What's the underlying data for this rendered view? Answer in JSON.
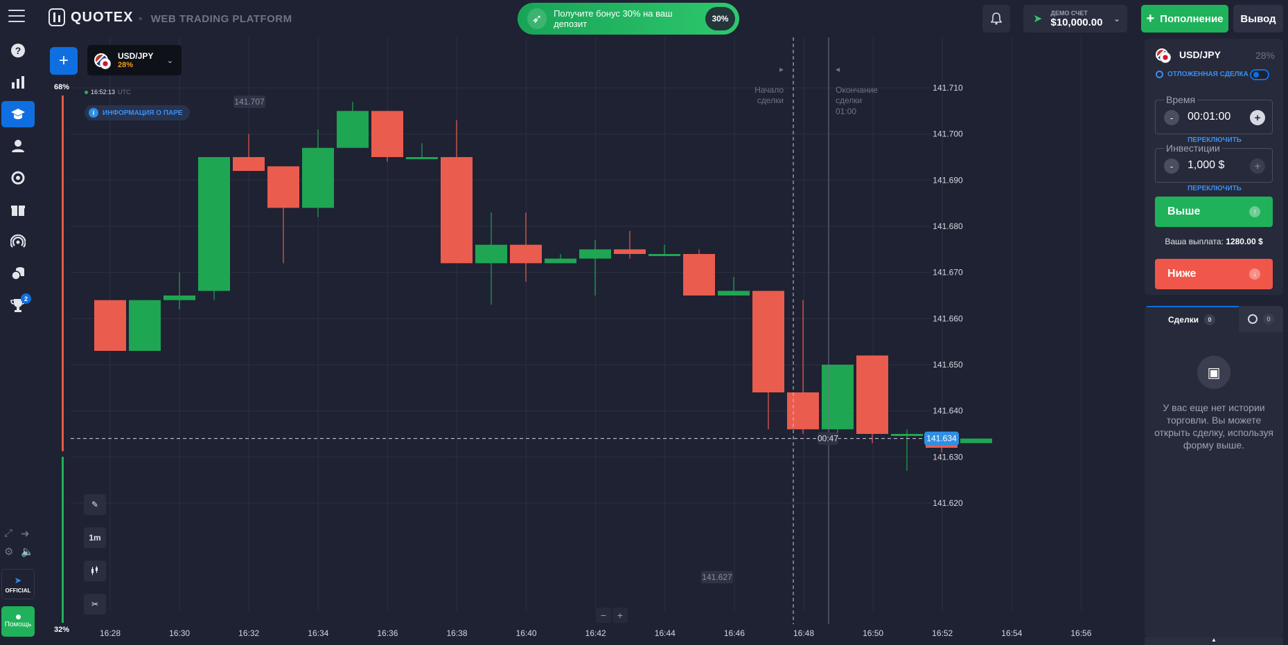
{
  "header": {
    "logo_text": "QUOTEX",
    "platform_label": "WEB TRADING PLATFORM",
    "bonus_text": "Получите бонус 30% на ваш депозит",
    "bonus_badge": "30%",
    "account_label": "ДЕМО СЧЕТ",
    "account_balance": "$10,000.00",
    "deposit_label": "Пополнение",
    "withdraw_label": "Вывод"
  },
  "sidebar": {
    "icons": [
      "help-icon",
      "chart-bars-icon",
      "education-icon",
      "user-icon",
      "refresh-icon",
      "gift-icon",
      "signal-icon",
      "coins-icon",
      "trophy-icon"
    ],
    "trophy_badge": "2",
    "official_label": "OFFICIAL",
    "help_label": "Помощь"
  },
  "chart_panel": {
    "pair_name": "USD/JPY",
    "pair_payout": "28%",
    "sentiment_up": "68%",
    "sentiment_down": "32%",
    "server_time": "16:52:13",
    "timezone": "UTC",
    "pair_info_label": "ИНФОРМАЦИЯ О ПАРЕ",
    "timeframe_label": "1m",
    "zoom_minus": "−",
    "zoom_plus": "+"
  },
  "chart_data": {
    "type": "candlestick",
    "y_ticks": [
      "141.710",
      "141.700",
      "141.690",
      "141.680",
      "141.670",
      "141.660",
      "141.650",
      "141.640",
      "141.630",
      "141.620"
    ],
    "ylim": [
      141.6155,
      141.7175
    ],
    "x_ticks": [
      "16:28",
      "16:30",
      "16:32",
      "16:34",
      "16:36",
      "16:38",
      "16:40",
      "16:42",
      "16:44",
      "16:46",
      "16:48",
      "16:50",
      "16:52",
      "16:54",
      "16:56"
    ],
    "high_marker": "141.707",
    "low_marker": "141.627",
    "current_price": "141.634",
    "countdown": "00:47",
    "trade_start_label_1": "Начало",
    "trade_start_label_2": "сделки",
    "trade_end_label_1": "Окончание",
    "trade_end_label_2": "сделки",
    "trade_end_time": "01:00",
    "colors": {
      "up": "#1fa653",
      "down": "#ea5c4e",
      "price_line": "#2f8fe3"
    },
    "candles": [
      {
        "time": "16:28",
        "open": 141.664,
        "high": 141.664,
        "low": 141.653,
        "close": 141.653
      },
      {
        "time": "16:29",
        "open": 141.653,
        "high": 141.664,
        "low": 141.653,
        "close": 141.664
      },
      {
        "time": "16:30",
        "open": 141.664,
        "high": 141.67,
        "low": 141.662,
        "close": 141.665
      },
      {
        "time": "16:30",
        "open": 141.666,
        "high": 141.695,
        "low": 141.664,
        "close": 141.695
      },
      {
        "time": "16:31",
        "open": 141.695,
        "high": 141.7,
        "low": 141.692,
        "close": 141.692
      },
      {
        "time": "16:32",
        "open": 141.693,
        "high": 141.693,
        "low": 141.672,
        "close": 141.684
      },
      {
        "time": "16:33",
        "open": 141.684,
        "high": 141.701,
        "low": 141.682,
        "close": 141.697
      },
      {
        "time": "16:34",
        "open": 141.697,
        "high": 141.707,
        "low": 141.697,
        "close": 141.705
      },
      {
        "time": "16:35",
        "open": 141.705,
        "high": 141.705,
        "low": 141.694,
        "close": 141.695
      },
      {
        "time": "16:36",
        "open": 141.695,
        "high": 141.698,
        "low": 141.695,
        "close": 141.695
      },
      {
        "time": "16:37",
        "open": 141.695,
        "high": 141.703,
        "low": 141.672,
        "close": 141.672
      },
      {
        "time": "16:38",
        "open": 141.672,
        "high": 141.683,
        "low": 141.663,
        "close": 141.676
      },
      {
        "time": "16:39",
        "open": 141.676,
        "high": 141.683,
        "low": 141.668,
        "close": 141.672
      },
      {
        "time": "16:40",
        "open": 141.672,
        "high": 141.674,
        "low": 141.672,
        "close": 141.673
      },
      {
        "time": "16:41",
        "open": 141.673,
        "high": 141.677,
        "low": 141.665,
        "close": 141.675
      },
      {
        "time": "16:42",
        "open": 141.675,
        "high": 141.679,
        "low": 141.673,
        "close": 141.674
      },
      {
        "time": "16:43",
        "open": 141.674,
        "high": 141.676,
        "low": 141.674,
        "close": 141.674
      },
      {
        "time": "16:44",
        "open": 141.674,
        "high": 141.675,
        "low": 141.665,
        "close": 141.665
      },
      {
        "time": "16:45",
        "open": 141.665,
        "high": 141.669,
        "low": 141.665,
        "close": 141.666
      },
      {
        "time": "16:46",
        "open": 141.666,
        "high": 141.666,
        "low": 141.636,
        "close": 141.644
      },
      {
        "time": "16:47",
        "open": 141.644,
        "high": 141.664,
        "low": 141.635,
        "close": 141.636
      },
      {
        "time": "16:48",
        "open": 141.636,
        "high": 141.65,
        "low": 141.635,
        "close": 141.65
      },
      {
        "time": "16:49",
        "open": 141.652,
        "high": 141.652,
        "low": 141.633,
        "close": 141.635
      },
      {
        "time": "16:50",
        "open": 141.635,
        "high": 141.636,
        "low": 141.627,
        "close": 141.635
      },
      {
        "time": "16:51",
        "open": 141.635,
        "high": 141.635,
        "low": 141.631,
        "close": 141.632
      },
      {
        "time": "16:52",
        "open": 141.633,
        "high": 141.634,
        "low": 141.633,
        "close": 141.634
      }
    ]
  },
  "trade_panel": {
    "pair_name": "USD/JPY",
    "payout": "28%",
    "pending_label": "ОТЛОЖЕННАЯ СДЕЛКА",
    "time_label": "Время",
    "time_value": "00:01:00",
    "investment_label": "Инвестиции",
    "investment_value": "1,000 $",
    "switch_label": "ПЕРЕКЛЮЧИТЬ",
    "up_label": "Выше",
    "down_label": "Ниже",
    "payout_label": "Ваша выплата:",
    "payout_value": "1280.00 $",
    "tab_trades": "Сделки",
    "tab_trades_count": "0",
    "tab_pending_count": "0",
    "empty_text": "У вас еще нет истории торговли. Вы можете открыть сделку, используя форму выше."
  }
}
